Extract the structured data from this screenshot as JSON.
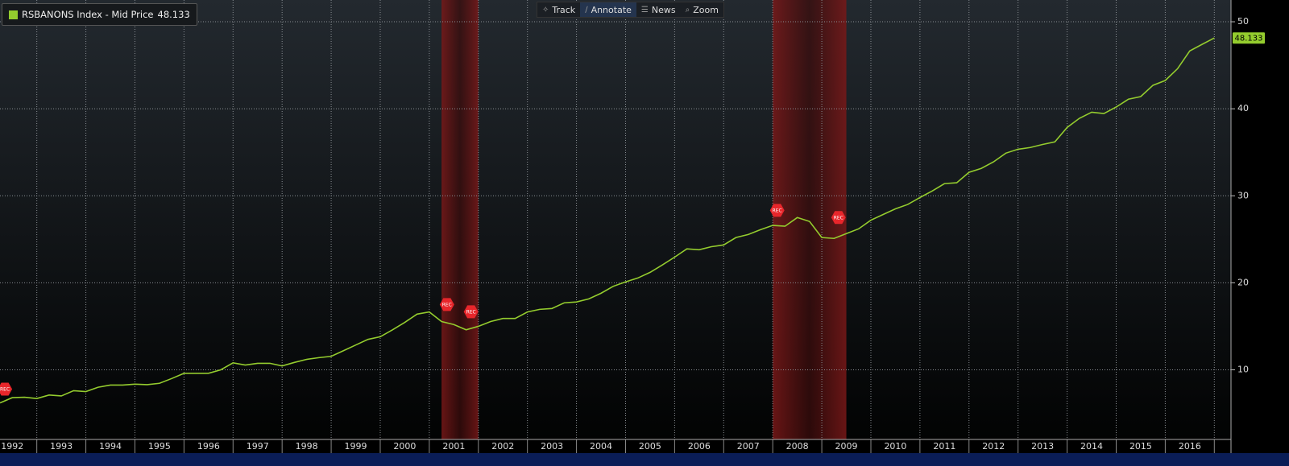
{
  "toolbar": {
    "buttons": [
      "Track",
      "Annotate",
      "News",
      "Zoom"
    ],
    "active": "Annotate"
  },
  "chart_data": {
    "type": "line",
    "series": [
      {
        "name": "RSBANONS Index - Mid Price",
        "color": "#94cc2e",
        "last_label": "48.133",
        "x": [
          1992.25,
          1992.5,
          1992.75,
          1993,
          1993.25,
          1993.5,
          1993.75,
          1994,
          1994.25,
          1994.5,
          1994.75,
          1995,
          1995.25,
          1995.5,
          1995.75,
          1996,
          1996.25,
          1996.5,
          1996.75,
          1997,
          1997.25,
          1997.5,
          1997.75,
          1998,
          1998.25,
          1998.5,
          1998.75,
          1999,
          1999.25,
          1999.5,
          1999.75,
          2000,
          2000.25,
          2000.5,
          2000.75,
          2001,
          2001.25,
          2001.5,
          2001.75,
          2002,
          2002.25,
          2002.5,
          2002.75,
          2003,
          2003.25,
          2003.5,
          2003.75,
          2004,
          2004.25,
          2004.5,
          2004.75,
          2005,
          2005.25,
          2005.5,
          2005.75,
          2006,
          2006.25,
          2006.5,
          2006.75,
          2007,
          2007.25,
          2007.5,
          2007.75,
          2008,
          2008.25,
          2008.5,
          2008.75,
          2009,
          2009.25,
          2009.5,
          2009.75,
          2010,
          2010.25,
          2010.5,
          2010.75,
          2011,
          2011.25,
          2011.5,
          2011.75,
          2012,
          2012.25,
          2012.5,
          2012.75,
          2013,
          2013.25,
          2013.5,
          2013.75,
          2014,
          2014.25,
          2014.5,
          2014.75,
          2015,
          2015.25,
          2015.5,
          2015.75,
          2016,
          2016.25,
          2016.5,
          2016.75,
          2017
        ],
        "values": [
          6.2,
          6.8,
          6.85,
          6.7,
          7.1,
          7.0,
          7.6,
          7.5,
          8.0,
          8.25,
          8.25,
          8.35,
          8.3,
          8.45,
          9.0,
          9.6,
          9.6,
          9.6,
          10.0,
          10.8,
          10.55,
          10.75,
          10.75,
          10.45,
          10.85,
          11.2,
          11.4,
          11.55,
          12.2,
          12.85,
          13.5,
          13.8,
          14.6,
          15.45,
          16.4,
          16.65,
          15.55,
          15.2,
          14.6,
          15.0,
          15.55,
          15.9,
          15.9,
          16.65,
          16.95,
          17.05,
          17.7,
          17.8,
          18.15,
          18.8,
          19.6,
          20.1,
          20.55,
          21.2,
          22.05,
          22.95,
          23.9,
          23.8,
          24.15,
          24.35,
          25.2,
          25.55,
          26.1,
          26.6,
          26.5,
          27.5,
          27.05,
          25.2,
          25.1,
          25.65,
          26.2,
          27.2,
          27.85,
          28.5,
          29.0,
          29.8,
          30.55,
          31.4,
          31.5,
          32.7,
          33.15,
          33.9,
          34.9,
          35.35,
          35.55,
          35.9,
          36.2,
          37.85,
          38.9,
          39.6,
          39.45,
          40.2,
          41.1,
          41.4,
          42.7,
          43.25,
          44.6,
          46.65,
          47.4,
          48.133
        ]
      }
    ],
    "xlim": [
      1992.25,
      2017.34
    ],
    "xticks": [
      1992,
      1993,
      1994,
      1995,
      1996,
      1997,
      1998,
      1999,
      2000,
      2001,
      2002,
      2003,
      2004,
      2005,
      2006,
      2007,
      2008,
      2009,
      2010,
      2011,
      2012,
      2013,
      2014,
      2015,
      2016,
      2017
    ],
    "year_labels": [
      "1992",
      "1993",
      "1994",
      "1995",
      "1996",
      "1997",
      "1998",
      "1999",
      "2000",
      "2001",
      "2002",
      "2003",
      "2004",
      "2005",
      "2006",
      "2007",
      "2008",
      "2009",
      "2010",
      "2011",
      "2012",
      "2013",
      "2014",
      "2015",
      "2016"
    ],
    "ylim": [
      2,
      52.5
    ],
    "yticks": [
      10,
      20,
      30,
      40,
      50
    ],
    "grid": true,
    "shaded_periods": [
      {
        "start": 2001.25,
        "end": 2002.0
      },
      {
        "start": 2008.0,
        "end": 2009.5
      }
    ],
    "annotations": [
      {
        "label": "REC",
        "x": 1992.35,
        "y": 7.78
      },
      {
        "label": "REC",
        "x": 2001.36,
        "y": 17.5
      },
      {
        "label": "REC",
        "x": 2001.85,
        "y": 16.67
      },
      {
        "label": "REC",
        "x": 2008.09,
        "y": 28.33
      },
      {
        "label": "REC",
        "x": 2009.34,
        "y": 27.5
      }
    ]
  }
}
